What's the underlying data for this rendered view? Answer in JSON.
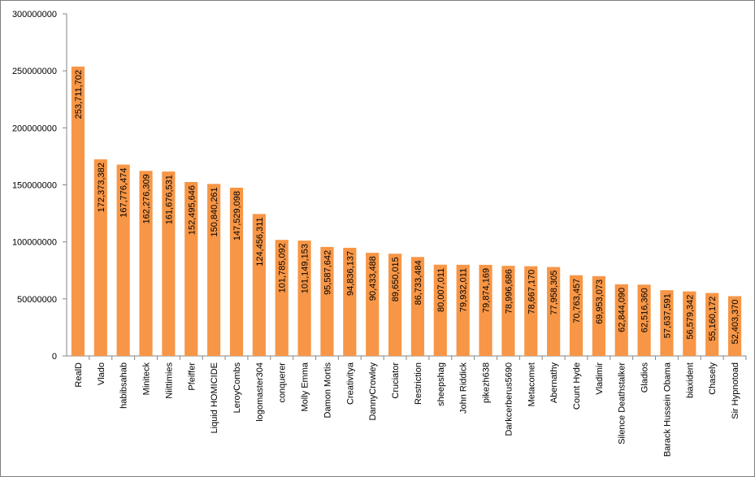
{
  "chart_data": {
    "type": "bar",
    "title": "",
    "xlabel": "",
    "ylabel": "",
    "ylim": [
      0,
      300000000
    ],
    "yticks": [
      0,
      50000000,
      100000000,
      150000000,
      200000000,
      250000000,
      300000000
    ],
    "ytick_labels": [
      "0",
      "50000000",
      "100000000",
      "150000000",
      "200000000",
      "250000000",
      "300000000"
    ],
    "grid": false,
    "legend": "none",
    "bar_color": "#f79646",
    "categories": [
      "RealD",
      "Vlado",
      "habibsahab",
      "Miniteck",
      "Niittimies",
      "Pfeiffer",
      "Liquid HOMICIDE",
      "LeroyCombs",
      "logomaster304",
      "conquerer",
      "Molly Emma",
      "Damon Mortis",
      "Creativitya",
      "DannyCrowley",
      "Cruciator",
      "Restriction",
      "sheepshag",
      "John Riddick",
      "pikezh638",
      "Darkcerberus5690",
      "Metacomet",
      "Abernathy",
      "Count Hyde",
      "Vladimir",
      "Silence Deathstalker",
      "Gladios",
      "Barack Hussein Obama",
      "biaxident",
      "Chasely",
      "Sir Hypnotoad"
    ],
    "values": [
      253711702,
      172373382,
      167776474,
      162276309,
      161676531,
      152495646,
      150840261,
      147529098,
      124456311,
      101785092,
      101149153,
      95587642,
      94836137,
      90433488,
      89650015,
      86733484,
      80007011,
      79932011,
      79874169,
      78996686,
      78667170,
      77958305,
      70763457,
      69953073,
      62844090,
      62516360,
      57637591,
      56579342,
      55160172,
      52403370
    ],
    "data_labels": [
      "253,711,702",
      "172,373,382",
      "167,776,474",
      "162,276,309",
      "161,676,531",
      "152,495,646",
      "150,840,261",
      "147,529,098",
      "124,456,311",
      "101,785,092",
      "101,149,153",
      "95,587,642",
      "94,836,137",
      "90,433,488",
      "89,650,015",
      "86,733,484",
      "80,007,011",
      "79,932,011",
      "79,874,169",
      "78,996,686",
      "78,667,170",
      "77,958,305",
      "70,763,457",
      "69,953,073",
      "62,844,090",
      "62,516,360",
      "57,637,591",
      "56,579,342",
      "55,160,172",
      "52,403,370"
    ]
  }
}
